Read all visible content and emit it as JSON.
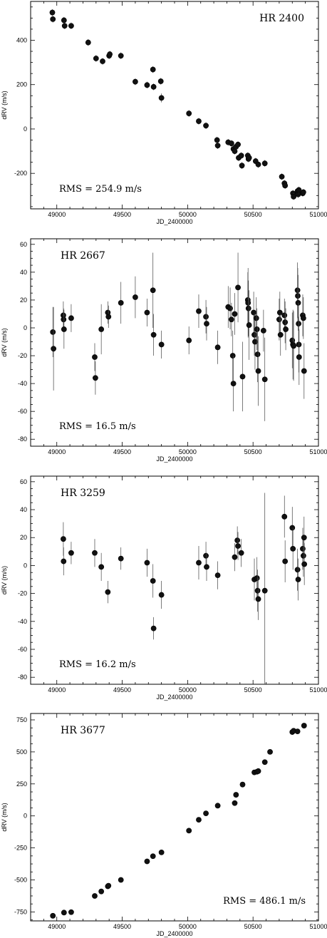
{
  "chart_data": [
    {
      "type": "scatter",
      "title": "HR 2400",
      "annotation": "RMS = 254.9 m/s",
      "xlabel": "JD_2400000",
      "ylabel": "dRV (m/s)",
      "xlim": [
        48800,
        51000
      ],
      "ylim": [
        -360,
        575
      ],
      "xticks": [
        49000,
        49500,
        50000,
        50500,
        51000
      ],
      "yticks": [
        -200,
        0,
        200,
        400
      ],
      "annotation_position": "bottom-left",
      "points": [
        {
          "x": 48966,
          "y": 525,
          "err": 15
        },
        {
          "x": 48970,
          "y": 495,
          "err": 15
        },
        {
          "x": 49055,
          "y": 490,
          "err": 15
        },
        {
          "x": 49060,
          "y": 465,
          "err": 15
        },
        {
          "x": 49110,
          "y": 465,
          "err": 15
        },
        {
          "x": 49240,
          "y": 390,
          "err": 15
        },
        {
          "x": 49300,
          "y": 318,
          "err": 15
        },
        {
          "x": 49350,
          "y": 305,
          "err": 15
        },
        {
          "x": 49400,
          "y": 330,
          "err": 15
        },
        {
          "x": 49405,
          "y": 337,
          "err": 15
        },
        {
          "x": 49490,
          "y": 330,
          "err": 15
        },
        {
          "x": 49600,
          "y": 213,
          "err": 15
        },
        {
          "x": 49690,
          "y": 198,
          "err": 15
        },
        {
          "x": 49735,
          "y": 268,
          "err": 15
        },
        {
          "x": 49740,
          "y": 190,
          "err": 15
        },
        {
          "x": 49795,
          "y": 215,
          "err": 15
        },
        {
          "x": 49800,
          "y": 140,
          "err": 20
        },
        {
          "x": 50010,
          "y": 70,
          "err": 15
        },
        {
          "x": 50085,
          "y": 35,
          "err": 15
        },
        {
          "x": 50140,
          "y": 15,
          "err": 15
        },
        {
          "x": 50225,
          "y": -50,
          "err": 15
        },
        {
          "x": 50230,
          "y": -75,
          "err": 15
        },
        {
          "x": 50310,
          "y": -60,
          "err": 15
        },
        {
          "x": 50335,
          "y": -65,
          "err": 15
        },
        {
          "x": 50350,
          "y": -90,
          "err": 15
        },
        {
          "x": 50360,
          "y": -100,
          "err": 15
        },
        {
          "x": 50370,
          "y": -80,
          "err": 15
        },
        {
          "x": 50385,
          "y": -70,
          "err": 15
        },
        {
          "x": 50390,
          "y": -130,
          "err": 15
        },
        {
          "x": 50410,
          "y": -120,
          "err": 15
        },
        {
          "x": 50415,
          "y": -165,
          "err": 15
        },
        {
          "x": 50460,
          "y": -120,
          "err": 15
        },
        {
          "x": 50465,
          "y": -135,
          "err": 15
        },
        {
          "x": 50470,
          "y": -130,
          "err": 15
        },
        {
          "x": 50520,
          "y": -145,
          "err": 15
        },
        {
          "x": 50540,
          "y": -160,
          "err": 15
        },
        {
          "x": 50590,
          "y": -155,
          "err": 15
        },
        {
          "x": 50720,
          "y": -215,
          "err": 15
        },
        {
          "x": 50740,
          "y": -245,
          "err": 15
        },
        {
          "x": 50745,
          "y": -255,
          "err": 15
        },
        {
          "x": 50805,
          "y": -290,
          "err": 15
        },
        {
          "x": 50810,
          "y": -305,
          "err": 15
        },
        {
          "x": 50840,
          "y": -280,
          "err": 15
        },
        {
          "x": 50845,
          "y": -295,
          "err": 15
        },
        {
          "x": 50850,
          "y": -275,
          "err": 15
        },
        {
          "x": 50880,
          "y": -290,
          "err": 15
        },
        {
          "x": 50885,
          "y": -285,
          "err": 15
        }
      ]
    },
    {
      "type": "scatter",
      "title": "HR 2667",
      "annotation": "RMS = 16.5 m/s",
      "xlabel": "JD_2400000",
      "ylabel": "dRV (m/s)",
      "xlim": [
        48800,
        51000
      ],
      "ylim": [
        -85,
        64
      ],
      "xticks": [
        49000,
        49500,
        50000,
        50500,
        51000
      ],
      "yticks": [
        -80,
        -60,
        -40,
        -20,
        0,
        20,
        40,
        60
      ],
      "annotation_position": "bottom-left",
      "points": [
        {
          "x": 48970,
          "y": -3,
          "err": 18
        },
        {
          "x": 48975,
          "y": -15,
          "err": 30
        },
        {
          "x": 49050,
          "y": 9,
          "err": 10
        },
        {
          "x": 49052,
          "y": 6,
          "err": 8
        },
        {
          "x": 49055,
          "y": -1,
          "err": 14
        },
        {
          "x": 49110,
          "y": 7,
          "err": 10
        },
        {
          "x": 49290,
          "y": -21,
          "err": 10
        },
        {
          "x": 49295,
          "y": -36,
          "err": 12
        },
        {
          "x": 49340,
          "y": -1,
          "err": 18
        },
        {
          "x": 49390,
          "y": 11,
          "err": 8
        },
        {
          "x": 49395,
          "y": 8,
          "err": 8
        },
        {
          "x": 49490,
          "y": 18,
          "err": 15
        },
        {
          "x": 49600,
          "y": 22,
          "err": 15
        },
        {
          "x": 49690,
          "y": 11,
          "err": 10
        },
        {
          "x": 49735,
          "y": 27,
          "err": 27
        },
        {
          "x": 49740,
          "y": -5,
          "err": 15
        },
        {
          "x": 49800,
          "y": -12,
          "err": 10
        },
        {
          "x": 50010,
          "y": -9,
          "err": 10
        },
        {
          "x": 50085,
          "y": 12,
          "err": 12
        },
        {
          "x": 50140,
          "y": 8,
          "err": 12
        },
        {
          "x": 50145,
          "y": 3,
          "err": 12
        },
        {
          "x": 50230,
          "y": -14,
          "err": 12
        },
        {
          "x": 50310,
          "y": 15,
          "err": 15
        },
        {
          "x": 50325,
          "y": 14,
          "err": 15
        },
        {
          "x": 50335,
          "y": 6,
          "err": 12
        },
        {
          "x": 50345,
          "y": -20,
          "err": 18
        },
        {
          "x": 50350,
          "y": -40,
          "err": 20
        },
        {
          "x": 50360,
          "y": 10,
          "err": 15
        },
        {
          "x": 50385,
          "y": 29,
          "err": 25
        },
        {
          "x": 50420,
          "y": -35,
          "err": 25
        },
        {
          "x": 50460,
          "y": 20,
          "err": 20
        },
        {
          "x": 50462,
          "y": 18,
          "err": 25
        },
        {
          "x": 50465,
          "y": 14,
          "err": 20
        },
        {
          "x": 50470,
          "y": 2,
          "err": 25
        },
        {
          "x": 50505,
          "y": 11,
          "err": 15
        },
        {
          "x": 50510,
          "y": -5,
          "err": 15
        },
        {
          "x": 50515,
          "y": -10,
          "err": 20
        },
        {
          "x": 50525,
          "y": 7,
          "err": 15
        },
        {
          "x": 50530,
          "y": -1,
          "err": 15
        },
        {
          "x": 50535,
          "y": -19,
          "err": 20
        },
        {
          "x": 50540,
          "y": -31,
          "err": 25
        },
        {
          "x": 50580,
          "y": -2,
          "err": 15
        },
        {
          "x": 50590,
          "y": -37,
          "err": 30
        },
        {
          "x": 50700,
          "y": 6,
          "err": 15
        },
        {
          "x": 50705,
          "y": 11,
          "err": 15
        },
        {
          "x": 50710,
          "y": -5,
          "err": 15
        },
        {
          "x": 50740,
          "y": 9,
          "err": 12
        },
        {
          "x": 50745,
          "y": 4,
          "err": 15
        },
        {
          "x": 50750,
          "y": -1,
          "err": 15
        },
        {
          "x": 50800,
          "y": -9,
          "err": 20
        },
        {
          "x": 50805,
          "y": -12,
          "err": 25
        },
        {
          "x": 50810,
          "y": -13,
          "err": 25
        },
        {
          "x": 50840,
          "y": 27,
          "err": 20
        },
        {
          "x": 50842,
          "y": 23,
          "err": 20
        },
        {
          "x": 50845,
          "y": 18,
          "err": 20
        },
        {
          "x": 50848,
          "y": 3,
          "err": 15
        },
        {
          "x": 50850,
          "y": -12,
          "err": 20
        },
        {
          "x": 50852,
          "y": -21,
          "err": 20
        },
        {
          "x": 50880,
          "y": 9,
          "err": 15
        },
        {
          "x": 50885,
          "y": 7,
          "err": 15
        },
        {
          "x": 50890,
          "y": -31,
          "err": 20
        }
      ]
    },
    {
      "type": "scatter",
      "title": "HR 3259",
      "annotation": "RMS = 16.2 m/s",
      "xlabel": "JD_2400000",
      "ylabel": "dRV (m/s)",
      "xlim": [
        48800,
        51000
      ],
      "ylim": [
        -85,
        64
      ],
      "xticks": [
        49000,
        49500,
        50000,
        50500,
        51000
      ],
      "yticks": [
        -80,
        -60,
        -40,
        -20,
        0,
        20,
        40,
        60
      ],
      "annotation_position": "bottom-left",
      "points": [
        {
          "x": 49050,
          "y": 19,
          "err": 12
        },
        {
          "x": 49052,
          "y": 3,
          "err": 10
        },
        {
          "x": 49110,
          "y": 9,
          "err": 8
        },
        {
          "x": 49290,
          "y": 9,
          "err": 10
        },
        {
          "x": 49340,
          "y": -1,
          "err": 10
        },
        {
          "x": 49390,
          "y": -19,
          "err": 8
        },
        {
          "x": 49490,
          "y": 5,
          "err": 8
        },
        {
          "x": 49690,
          "y": 2,
          "err": 10
        },
        {
          "x": 49735,
          "y": -11,
          "err": 12
        },
        {
          "x": 49740,
          "y": -45,
          "err": 8
        },
        {
          "x": 49800,
          "y": -21,
          "err": 10
        },
        {
          "x": 50085,
          "y": 2,
          "err": 12
        },
        {
          "x": 50140,
          "y": 7,
          "err": 10
        },
        {
          "x": 50145,
          "y": -1,
          "err": 10
        },
        {
          "x": 50230,
          "y": -7,
          "err": 10
        },
        {
          "x": 50360,
          "y": 6,
          "err": 10
        },
        {
          "x": 50380,
          "y": 18,
          "err": 10
        },
        {
          "x": 50385,
          "y": 14,
          "err": 10
        },
        {
          "x": 50410,
          "y": 9,
          "err": 10
        },
        {
          "x": 50510,
          "y": -10,
          "err": 15
        },
        {
          "x": 50530,
          "y": -9,
          "err": 15
        },
        {
          "x": 50535,
          "y": -18,
          "err": 15
        },
        {
          "x": 50540,
          "y": -24,
          "err": 15
        },
        {
          "x": 50590,
          "y": -18,
          "err": 70
        },
        {
          "x": 50740,
          "y": 35,
          "err": 15
        },
        {
          "x": 50745,
          "y": 3,
          "err": 15
        },
        {
          "x": 50800,
          "y": 27,
          "err": 15
        },
        {
          "x": 50805,
          "y": 12,
          "err": 15
        },
        {
          "x": 50840,
          "y": -3,
          "err": 15
        },
        {
          "x": 50845,
          "y": -10,
          "err": 15
        },
        {
          "x": 50880,
          "y": 12,
          "err": 15
        },
        {
          "x": 50885,
          "y": 7,
          "err": 15
        },
        {
          "x": 50890,
          "y": 20,
          "err": 15
        },
        {
          "x": 50892,
          "y": 1,
          "err": 15
        }
      ]
    },
    {
      "type": "scatter",
      "title": "HR 3677",
      "annotation": "RMS = 486.1 m/s",
      "xlabel": "JD_2400000",
      "ylabel": "dRV (m/s)",
      "xlim": [
        48800,
        51000
      ],
      "ylim": [
        -820,
        800
      ],
      "xticks": [
        49000,
        49500,
        50000,
        50500,
        51000
      ],
      "yticks": [
        -750,
        -500,
        -250,
        0,
        250,
        500,
        750
      ],
      "annotation_position": "bottom-right",
      "points": [
        {
          "x": 48970,
          "y": -780,
          "err": 10
        },
        {
          "x": 49055,
          "y": -755,
          "err": 10
        },
        {
          "x": 49110,
          "y": -752,
          "err": 10
        },
        {
          "x": 49290,
          "y": -625,
          "err": 10
        },
        {
          "x": 49340,
          "y": -590,
          "err": 10
        },
        {
          "x": 49390,
          "y": -550,
          "err": 10
        },
        {
          "x": 49395,
          "y": -545,
          "err": 10
        },
        {
          "x": 49490,
          "y": -500,
          "err": 10
        },
        {
          "x": 49690,
          "y": -355,
          "err": 10
        },
        {
          "x": 49735,
          "y": -315,
          "err": 10
        },
        {
          "x": 49800,
          "y": -285,
          "err": 10
        },
        {
          "x": 50010,
          "y": -115,
          "err": 10
        },
        {
          "x": 50085,
          "y": -30,
          "err": 10
        },
        {
          "x": 50140,
          "y": 20,
          "err": 10
        },
        {
          "x": 50230,
          "y": 80,
          "err": 10
        },
        {
          "x": 50360,
          "y": 100,
          "err": 10
        },
        {
          "x": 50370,
          "y": 165,
          "err": 10
        },
        {
          "x": 50420,
          "y": 245,
          "err": 10
        },
        {
          "x": 50510,
          "y": 340,
          "err": 10
        },
        {
          "x": 50530,
          "y": 345,
          "err": 10
        },
        {
          "x": 50540,
          "y": 350,
          "err": 10
        },
        {
          "x": 50590,
          "y": 420,
          "err": 10
        },
        {
          "x": 50630,
          "y": 500,
          "err": 10
        },
        {
          "x": 50800,
          "y": 655,
          "err": 10
        },
        {
          "x": 50810,
          "y": 665,
          "err": 10
        },
        {
          "x": 50840,
          "y": 660,
          "err": 10
        },
        {
          "x": 50890,
          "y": 705,
          "err": 10
        }
      ]
    }
  ]
}
